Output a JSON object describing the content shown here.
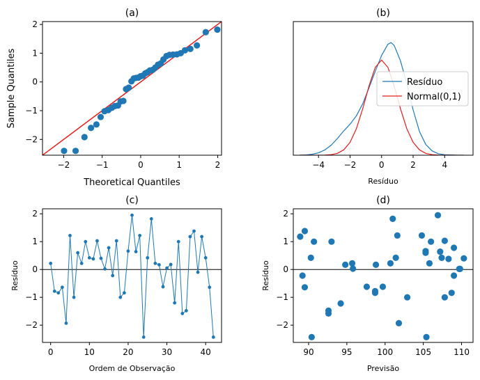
{
  "colors": {
    "blue": "#1f77b4",
    "red": "#e41a1c",
    "black": "#000000"
  },
  "chart_data": [
    {
      "id": "a",
      "type": "scatter",
      "title": "(a)",
      "xlabel": "Theoretical Quantiles",
      "ylabel": "Sample Quantiles",
      "xlim": [
        -2.55,
        2.1
      ],
      "ylim": [
        -2.55,
        2.1
      ],
      "xticks": [
        -2,
        -1,
        0,
        1,
        2
      ],
      "yticks": [
        -2,
        -1,
        0,
        1,
        2
      ],
      "xtick_labels": [
        "−2",
        "−1",
        "0",
        "1",
        "2"
      ],
      "ytick_labels": [
        "−2",
        "−1",
        "0",
        "1",
        "2"
      ],
      "reference_line": {
        "from": [
          -2.55,
          -2.55
        ],
        "to": [
          2.1,
          2.1
        ]
      },
      "points": [
        [
          -1.99,
          -2.4
        ],
        [
          -1.69,
          -2.4
        ],
        [
          -1.46,
          -1.92
        ],
        [
          -1.29,
          -1.6
        ],
        [
          -1.15,
          -1.48
        ],
        [
          -1.04,
          -1.22
        ],
        [
          -0.94,
          -1.02
        ],
        [
          -0.84,
          -0.98
        ],
        [
          -0.75,
          -0.9
        ],
        [
          -0.67,
          -0.84
        ],
        [
          -0.59,
          -0.82
        ],
        [
          -0.52,
          -0.68
        ],
        [
          -0.45,
          -0.66
        ],
        [
          -0.38,
          -0.25
        ],
        [
          -0.31,
          -0.2
        ],
        [
          -0.24,
          0.02
        ],
        [
          -0.18,
          0.12
        ],
        [
          -0.12,
          0.14
        ],
        [
          -0.06,
          0.15
        ],
        [
          0.0,
          0.2
        ],
        [
          0.06,
          0.22
        ],
        [
          0.12,
          0.3
        ],
        [
          0.18,
          0.34
        ],
        [
          0.24,
          0.4
        ],
        [
          0.31,
          0.42
        ],
        [
          0.38,
          0.5
        ],
        [
          0.45,
          0.6
        ],
        [
          0.52,
          0.64
        ],
        [
          0.59,
          0.78
        ],
        [
          0.67,
          0.9
        ],
        [
          0.75,
          0.94
        ],
        [
          0.84,
          0.95
        ],
        [
          0.94,
          0.96
        ],
        [
          1.04,
          1.0
        ],
        [
          1.15,
          1.1
        ],
        [
          1.29,
          1.15
        ],
        [
          1.46,
          1.27
        ],
        [
          1.69,
          1.73
        ],
        [
          1.99,
          1.82
        ]
      ]
    },
    {
      "id": "b",
      "type": "line",
      "title": "(b)",
      "xlabel": "Resíduo",
      "ylabel": "",
      "xlim": [
        -5.6,
        5.8
      ],
      "ylim": [
        0,
        0.56
      ],
      "xticks": [
        -4,
        -2,
        0,
        2,
        4
      ],
      "xtick_labels": [
        "−4",
        "−2",
        "0",
        "2",
        "4"
      ],
      "legend_position": "center-right",
      "series": [
        {
          "name": "Resíduo",
          "color": "#1f77b4",
          "x": [
            -5.2,
            -4.8,
            -4.4,
            -4.0,
            -3.6,
            -3.2,
            -2.8,
            -2.4,
            -2.0,
            -1.6,
            -1.2,
            -0.8,
            -0.4,
            0.0,
            0.4,
            0.6,
            0.8,
            1.2,
            1.6,
            2.0,
            2.4,
            2.8,
            3.2,
            3.6,
            4.0,
            4.4,
            4.8,
            5.2
          ],
          "y": [
            0.0,
            0.001,
            0.004,
            0.01,
            0.022,
            0.042,
            0.07,
            0.102,
            0.13,
            0.165,
            0.215,
            0.282,
            0.352,
            0.418,
            0.465,
            0.472,
            0.46,
            0.395,
            0.3,
            0.19,
            0.1,
            0.045,
            0.018,
            0.006,
            0.002,
            0.001,
            0.0,
            0.0
          ]
        },
        {
          "name": "Normal(0,1)",
          "color": "#e41a1c",
          "x": [
            -5.2,
            -4.8,
            -4.4,
            -4.0,
            -3.6,
            -3.2,
            -2.8,
            -2.4,
            -2.0,
            -1.6,
            -1.2,
            -0.8,
            -0.4,
            0.0,
            0.4,
            0.8,
            1.2,
            1.6,
            2.0,
            2.4,
            2.8,
            3.2,
            3.6,
            4.0,
            4.4,
            4.8,
            5.2
          ],
          "y": [
            0.0,
            0.0,
            0.0,
            0.0001,
            0.0006,
            0.0024,
            0.0079,
            0.0224,
            0.054,
            0.1109,
            0.1942,
            0.2897,
            0.3683,
            0.3989,
            0.3683,
            0.2897,
            0.1942,
            0.1109,
            0.054,
            0.0224,
            0.0079,
            0.0024,
            0.0006,
            0.0001,
            0.0,
            0.0,
            0.0
          ]
        }
      ]
    },
    {
      "id": "c",
      "type": "line",
      "title": "(c)",
      "xlabel": "Ordem de Observação",
      "ylabel": "Resíduo",
      "xlim": [
        -2.1,
        44.1
      ],
      "ylim": [
        -2.62,
        2.18
      ],
      "xticks": [
        0,
        10,
        20,
        30,
        40
      ],
      "yticks": [
        -2,
        -1,
        0,
        1,
        2
      ],
      "xtick_labels": [
        "0",
        "10",
        "20",
        "30",
        "40"
      ],
      "ytick_labels": [
        "−2",
        "−1",
        "0",
        "1",
        "2"
      ],
      "hline": 0,
      "values": [
        0.22,
        -0.78,
        -0.84,
        -0.64,
        -1.93,
        1.22,
        -1.0,
        0.6,
        0.22,
        1.0,
        0.42,
        0.38,
        1.03,
        0.4,
        0.02,
        0.78,
        -0.22,
        1.03,
        -1.0,
        -0.84,
        0.66,
        1.95,
        0.64,
        1.22,
        -2.43,
        0.42,
        1.82,
        0.22,
        0.17,
        -0.62,
        0.05,
        0.18,
        -1.2,
        1.0,
        -1.58,
        -1.48,
        1.18,
        1.38,
        -0.1,
        1.18,
        0.42,
        -0.64,
        -2.43
      ]
    },
    {
      "id": "d",
      "type": "scatter",
      "title": "(d)",
      "xlabel": "Previsão",
      "ylabel": "Resíduo",
      "xlim": [
        88.0,
        111.5
      ],
      "ylim": [
        -2.62,
        2.18
      ],
      "xticks": [
        90,
        95,
        100,
        105,
        110
      ],
      "yticks": [
        -2,
        -1,
        0,
        1,
        2
      ],
      "xtick_labels": [
        "90",
        "95",
        "100",
        "105",
        "110"
      ],
      "ytick_labels": [
        "−2",
        "−1",
        "0",
        "1",
        "2"
      ],
      "hline": 0,
      "points": [
        [
          88.9,
          1.18
        ],
        [
          89.2,
          -0.22
        ],
        [
          89.5,
          1.38
        ],
        [
          89.5,
          -0.64
        ],
        [
          90.3,
          0.42
        ],
        [
          90.4,
          -2.43
        ],
        [
          90.7,
          1.0
        ],
        [
          92.6,
          -1.48
        ],
        [
          92.6,
          -1.58
        ],
        [
          93.0,
          1.0
        ],
        [
          94.2,
          -1.22
        ],
        [
          94.8,
          0.17
        ],
        [
          95.7,
          0.22
        ],
        [
          95.8,
          0.03
        ],
        [
          97.6,
          -0.62
        ],
        [
          98.7,
          -0.78
        ],
        [
          98.8,
          0.17
        ],
        [
          98.7,
          -0.84
        ],
        [
          99.7,
          -0.62
        ],
        [
          100.7,
          0.22
        ],
        [
          101.0,
          1.82
        ],
        [
          101.4,
          0.42
        ],
        [
          101.6,
          1.22
        ],
        [
          101.8,
          -1.93
        ],
        [
          102.9,
          -1.0
        ],
        [
          104.8,
          1.22
        ],
        [
          105.3,
          0.6
        ],
        [
          105.3,
          0.66
        ],
        [
          105.4,
          -2.43
        ],
        [
          105.8,
          0.22
        ],
        [
          106.0,
          1.0
        ],
        [
          106.9,
          1.95
        ],
        [
          107.2,
          0.64
        ],
        [
          107.4,
          0.42
        ],
        [
          107.8,
          -1.0
        ],
        [
          107.8,
          1.03
        ],
        [
          108.3,
          0.38
        ],
        [
          108.7,
          -0.84
        ],
        [
          109.0,
          0.78
        ],
        [
          109.0,
          -0.22
        ],
        [
          109.7,
          0.02
        ],
        [
          109.8,
          0.02
        ],
        [
          110.3,
          0.4
        ]
      ]
    }
  ]
}
